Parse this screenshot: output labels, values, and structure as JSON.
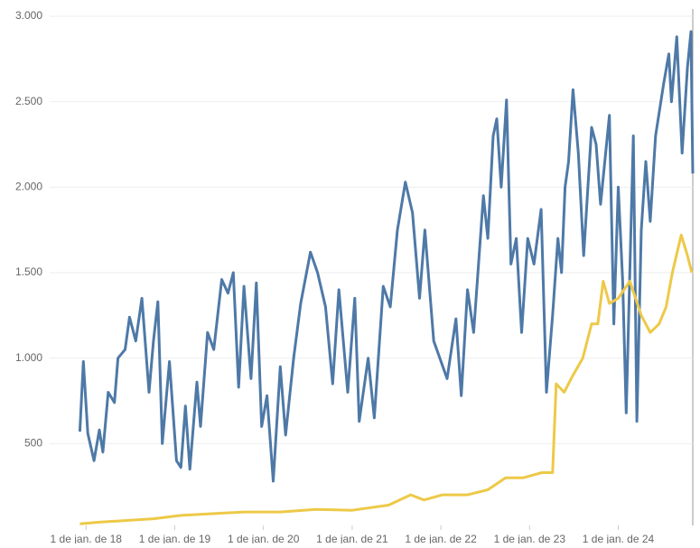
{
  "chart_data": {
    "type": "line",
    "xlim": [
      2017.59,
      2024.84
    ],
    "xticks": [
      {
        "value": 2018,
        "label": "1 de jan. de 18"
      },
      {
        "value": 2019,
        "label": "1 de jan. de 19"
      },
      {
        "value": 2020,
        "label": "1 de jan. de 20"
      },
      {
        "value": 2021,
        "label": "1 de jan. de 21"
      },
      {
        "value": 2022,
        "label": "1 de jan. de 22"
      },
      {
        "value": 2023,
        "label": "1 de jan. de 23"
      },
      {
        "value": 2024,
        "label": "1 de jan. de 24"
      }
    ],
    "ylim": [
      0,
      3000
    ],
    "yticks": [
      500,
      {
        "value": 1000,
        "label": "1.000"
      },
      {
        "value": 1500,
        "label": "1.500"
      },
      {
        "value": 2000,
        "label": "2.000"
      },
      {
        "value": 2500,
        "label": "2.500"
      },
      {
        "value": 3000,
        "label": "3.000"
      }
    ],
    "grid": true,
    "series": [
      {
        "color": "#4e79a7",
        "x": [
          2017.93,
          2017.97,
          2018.02,
          2018.09,
          2018.15,
          2018.19,
          2018.25,
          2018.32,
          2018.36,
          2018.44,
          2018.49,
          2018.56,
          2018.63,
          2018.71,
          2018.76,
          2018.81,
          2018.86,
          2018.94,
          2019.02,
          2019.07,
          2019.12,
          2019.17,
          2019.25,
          2019.29,
          2019.37,
          2019.44,
          2019.53,
          2019.6,
          2019.66,
          2019.72,
          2019.78,
          2019.86,
          2019.92,
          2019.98,
          2020.04,
          2020.11,
          2020.19,
          2020.25,
          2020.34,
          2020.42,
          2020.53,
          2020.61,
          2020.7,
          2020.78,
          2020.85,
          2020.95,
          2021.03,
          2021.08,
          2021.18,
          2021.25,
          2021.35,
          2021.43,
          2021.51,
          2021.6,
          2021.68,
          2021.76,
          2021.82,
          2021.92,
          2022.07,
          2022.17,
          2022.23,
          2022.3,
          2022.37,
          2022.48,
          2022.53,
          2022.59,
          2022.63,
          2022.68,
          2022.74,
          2022.79,
          2022.85,
          2022.91,
          2022.98,
          2023.05,
          2023.13,
          2023.19,
          2023.26,
          2023.32,
          2023.36,
          2023.4,
          2023.44,
          2023.49,
          2023.55,
          2023.61,
          2023.7,
          2023.75,
          2023.8,
          2023.9,
          2023.95,
          2024.0,
          2024.05,
          2024.09,
          2024.13,
          2024.17,
          2024.21,
          2024.26,
          2024.31,
          2024.36,
          2024.42,
          2024.51,
          2024.57,
          2024.6,
          2024.66,
          2024.72,
          2024.78,
          2024.82,
          2024.84
        ],
        "values": [
          570,
          980,
          560,
          400,
          580,
          450,
          800,
          740,
          1000,
          1050,
          1240,
          1100,
          1350,
          800,
          1100,
          1330,
          500,
          980,
          400,
          360,
          720,
          350,
          860,
          600,
          1150,
          1050,
          1460,
          1380,
          1500,
          830,
          1420,
          880,
          1440,
          600,
          780,
          280,
          950,
          550,
          1000,
          1320,
          1620,
          1500,
          1300,
          850,
          1400,
          800,
          1350,
          630,
          1000,
          650,
          1420,
          1300,
          1750,
          2030,
          1850,
          1350,
          1750,
          1100,
          880,
          1230,
          780,
          1400,
          1150,
          1950,
          1700,
          2300,
          2400,
          2000,
          2510,
          1550,
          1700,
          1150,
          1700,
          1550,
          1870,
          800,
          1250,
          1700,
          1500,
          2000,
          2150,
          2570,
          2200,
          1600,
          2350,
          2250,
          1900,
          2420,
          1200,
          2000,
          1450,
          680,
          1500,
          2300,
          630,
          1750,
          2150,
          1800,
          2300,
          2600,
          2780,
          2500,
          2880,
          2200,
          2700,
          2910,
          2080
        ]
      },
      {
        "color": "#edc948",
        "x": [
          2017.93,
          2018.15,
          2018.46,
          2018.76,
          2019.07,
          2019.42,
          2019.78,
          2020.19,
          2020.59,
          2021.0,
          2021.41,
          2021.66,
          2021.81,
          2022.02,
          2022.3,
          2022.53,
          2022.73,
          2022.93,
          2023.14,
          2023.26,
          2023.3,
          2023.39,
          2023.49,
          2023.6,
          2023.7,
          2023.77,
          2023.83,
          2023.9,
          2024.0,
          2024.13,
          2024.26,
          2024.36,
          2024.46,
          2024.54,
          2024.61,
          2024.71,
          2024.78,
          2024.83
        ],
        "values": [
          30,
          40,
          50,
          60,
          80,
          90,
          100,
          100,
          115,
          110,
          140,
          200,
          170,
          200,
          200,
          230,
          300,
          300,
          330,
          330,
          850,
          800,
          900,
          1000,
          1200,
          1200,
          1450,
          1320,
          1350,
          1450,
          1250,
          1150,
          1200,
          1300,
          1500,
          1720,
          1600,
          1500
        ]
      }
    ]
  }
}
